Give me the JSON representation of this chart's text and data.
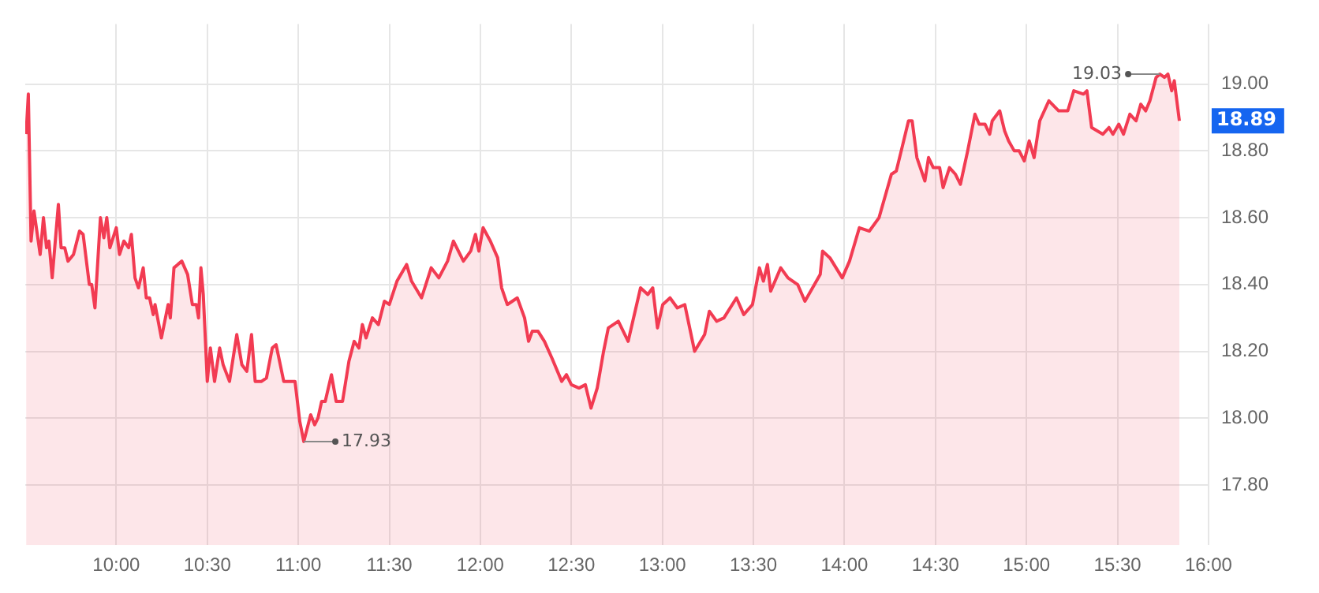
{
  "chart_data": {
    "type": "area",
    "x": [
      9.505,
      9.517,
      9.532,
      9.548,
      9.582,
      9.6,
      9.617,
      9.63,
      9.648,
      9.682,
      9.697,
      9.717,
      9.735,
      9.765,
      9.798,
      9.818,
      9.852,
      9.865,
      9.883,
      9.913,
      9.932,
      9.948,
      9.965,
      10.0,
      10.018,
      10.042,
      10.068,
      10.083,
      10.103,
      10.122,
      10.148,
      10.165,
      10.183,
      10.203,
      10.213,
      10.248,
      10.285,
      10.297,
      10.317,
      10.338,
      10.36,
      10.392,
      10.418,
      10.44,
      10.452,
      10.465,
      10.478,
      10.5,
      10.517,
      10.54,
      10.568,
      10.587,
      10.622,
      10.662,
      10.69,
      10.717,
      10.743,
      10.763,
      10.798,
      10.825,
      10.857,
      10.878,
      10.92,
      10.982,
      11.008,
      11.03,
      11.068,
      11.09,
      11.108,
      11.128,
      11.148,
      11.182,
      11.208,
      11.243,
      11.278,
      11.307,
      11.333,
      11.352,
      11.372,
      11.407,
      11.44,
      11.473,
      11.5,
      11.542,
      11.595,
      11.622,
      11.677,
      11.73,
      11.772,
      11.82,
      11.852,
      11.907,
      11.947,
      11.973,
      11.992,
      12.015,
      12.055,
      12.095,
      12.117,
      12.148,
      12.203,
      12.243,
      12.265,
      12.285,
      12.317,
      12.352,
      12.393,
      12.447,
      12.473,
      12.5,
      12.542,
      12.577,
      12.608,
      12.642,
      12.677,
      12.703,
      12.758,
      12.812,
      12.88,
      12.92,
      12.947,
      12.973,
      13.002,
      13.042,
      13.082,
      13.123,
      13.177,
      13.232,
      13.258,
      13.298,
      13.338,
      13.407,
      13.447,
      13.495,
      13.533,
      13.555,
      13.577,
      13.595,
      13.65,
      13.69,
      13.743,
      13.783,
      13.825,
      13.867,
      13.88,
      13.92,
      13.988,
      14.028,
      14.082,
      14.137,
      14.19,
      14.258,
      14.285,
      14.312,
      14.352,
      14.372,
      14.398,
      14.442,
      14.462,
      14.488,
      14.523,
      14.542,
      14.577,
      14.61,
      14.637,
      14.677,
      14.717,
      14.74,
      14.772,
      14.798,
      14.812,
      14.853,
      14.88,
      14.902,
      14.933,
      14.96,
      14.988,
      15.015,
      15.042,
      15.073,
      15.123,
      15.177,
      15.227,
      15.26,
      15.313,
      15.332,
      15.358,
      15.42,
      15.453,
      15.475,
      15.507,
      15.533,
      15.568,
      15.602,
      15.628,
      15.655,
      15.678,
      15.712,
      15.732,
      15.758,
      15.777,
      15.798,
      15.812,
      15.84
    ],
    "series": [
      {
        "color": "#f23b52",
        "values": [
          18.85,
          18.97,
          18.53,
          18.62,
          18.49,
          18.6,
          18.51,
          18.53,
          18.42,
          18.64,
          18.51,
          18.51,
          18.47,
          18.49,
          18.56,
          18.55,
          18.4,
          18.4,
          18.33,
          18.6,
          18.54,
          18.6,
          18.51,
          18.57,
          18.49,
          18.53,
          18.51,
          18.55,
          18.42,
          18.39,
          18.45,
          18.36,
          18.36,
          18.31,
          18.34,
          18.24,
          18.34,
          18.3,
          18.45,
          18.46,
          18.47,
          18.43,
          18.34,
          18.34,
          18.3,
          18.45,
          18.37,
          18.11,
          18.21,
          18.11,
          18.21,
          18.16,
          18.11,
          18.25,
          18.16,
          18.14,
          18.25,
          18.11,
          18.11,
          18.12,
          18.21,
          18.22,
          18.11,
          18.11,
          17.99,
          17.93,
          18.01,
          17.98,
          18.0,
          18.05,
          18.05,
          18.13,
          18.05,
          18.05,
          18.17,
          18.23,
          18.21,
          18.28,
          18.24,
          18.3,
          18.28,
          18.35,
          18.34,
          18.41,
          18.46,
          18.41,
          18.36,
          18.45,
          18.42,
          18.47,
          18.53,
          18.47,
          18.5,
          18.55,
          18.5,
          18.57,
          18.53,
          18.48,
          18.39,
          18.34,
          18.36,
          18.3,
          18.23,
          18.26,
          18.26,
          18.23,
          18.18,
          18.11,
          18.13,
          18.1,
          18.09,
          18.1,
          18.03,
          18.09,
          18.2,
          18.27,
          18.29,
          18.23,
          18.39,
          18.37,
          18.39,
          18.27,
          18.34,
          18.36,
          18.33,
          18.34,
          18.2,
          18.25,
          18.32,
          18.29,
          18.3,
          18.36,
          18.31,
          18.34,
          18.45,
          18.41,
          18.46,
          18.38,
          18.45,
          18.42,
          18.4,
          18.35,
          18.39,
          18.43,
          18.5,
          18.48,
          18.42,
          18.47,
          18.57,
          18.56,
          18.6,
          18.73,
          18.74,
          18.8,
          18.89,
          18.89,
          18.78,
          18.71,
          18.78,
          18.75,
          18.75,
          18.69,
          18.75,
          18.73,
          18.7,
          18.8,
          18.91,
          18.88,
          18.88,
          18.85,
          18.89,
          18.92,
          18.86,
          18.83,
          18.8,
          18.8,
          18.77,
          18.83,
          18.78,
          18.89,
          18.95,
          18.92,
          18.92,
          18.98,
          18.97,
          18.98,
          18.87,
          18.85,
          18.87,
          18.85,
          18.88,
          18.85,
          18.91,
          18.89,
          18.94,
          18.92,
          18.95,
          19.02,
          19.03,
          19.02,
          19.03,
          18.98,
          19.01,
          18.89
        ]
      }
    ],
    "xlim": [
      9.5,
      16
    ],
    "xticks": [
      {
        "value": 10,
        "label": "10:00"
      },
      {
        "value": 10.5,
        "label": "10:30"
      },
      {
        "value": 11,
        "label": "11:00"
      },
      {
        "value": 11.5,
        "label": "11:30"
      },
      {
        "value": 12,
        "label": "12:00"
      },
      {
        "value": 12.5,
        "label": "12:30"
      },
      {
        "value": 13,
        "label": "13:00"
      },
      {
        "value": 13.5,
        "label": "13:30"
      },
      {
        "value": 14,
        "label": "14:00"
      },
      {
        "value": 14.5,
        "label": "14:30"
      },
      {
        "value": 15,
        "label": "15:00"
      },
      {
        "value": 15.5,
        "label": "15:30"
      },
      {
        "value": 16,
        "label": "16:00"
      }
    ],
    "ylim": [
      17.62,
      19.18
    ],
    "yticks": [
      {
        "value": 17.8,
        "label": "17.80"
      },
      {
        "value": 18,
        "label": "18.00"
      },
      {
        "value": 18.2,
        "label": "18.20"
      },
      {
        "value": 18.4,
        "label": "18.40"
      },
      {
        "value": 18.6,
        "label": "18.60"
      },
      {
        "value": 18.8,
        "label": "18.80"
      },
      {
        "value": 19,
        "label": "19.00"
      }
    ],
    "grid": true,
    "annotations": [
      {
        "text": "17.93",
        "x": 11.03,
        "y": 17.93
      },
      {
        "text": "19.03",
        "x": 15.732,
        "y": 19.03
      },
      {
        "text": "18.89",
        "x": 15.84,
        "y": 18.89
      }
    ]
  }
}
